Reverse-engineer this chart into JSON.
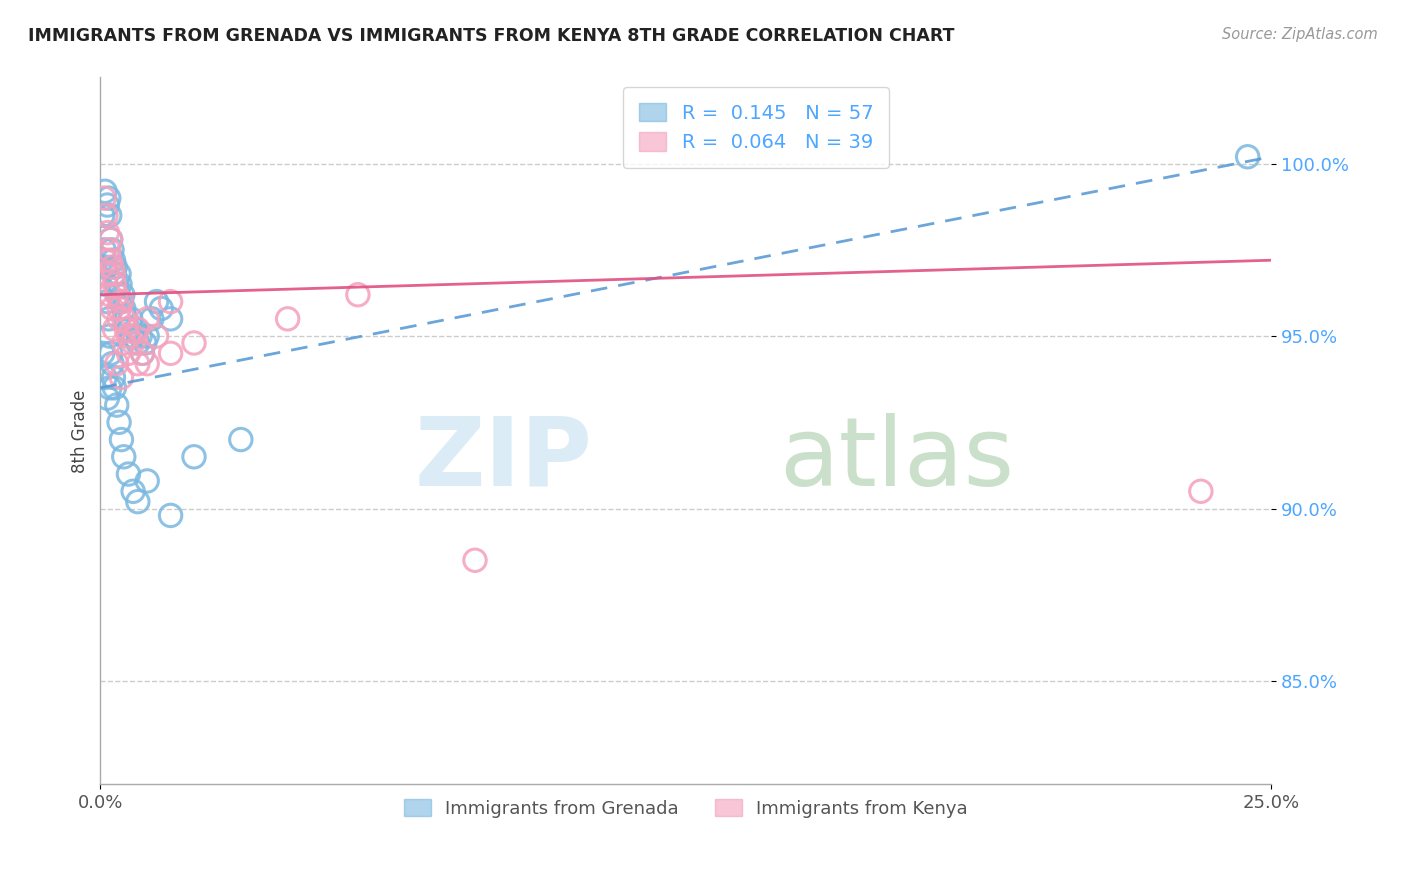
{
  "title": "IMMIGRANTS FROM GRENADA VS IMMIGRANTS FROM KENYA 8TH GRADE CORRELATION CHART",
  "source": "Source: ZipAtlas.com",
  "ylabel": "8th Grade",
  "x_min": 0.0,
  "x_max": 25.0,
  "y_min": 82.0,
  "y_max": 102.5,
  "x_ticks": [
    0.0,
    25.0
  ],
  "x_tick_labels": [
    "0.0%",
    "25.0%"
  ],
  "y_ticks": [
    85.0,
    90.0,
    95.0,
    100.0
  ],
  "y_tick_labels": [
    "85.0%",
    "90.0%",
    "95.0%",
    "100.0%"
  ],
  "grenada_R": 0.145,
  "grenada_N": 57,
  "kenya_R": 0.064,
  "kenya_N": 39,
  "grenada_color": "#7ab8e0",
  "kenya_color": "#f4a0bc",
  "grenada_line_color": "#5b9bd5",
  "kenya_line_color": "#e05080",
  "background_color": "#ffffff",
  "grenada_line_x0": 0.0,
  "grenada_line_y0": 93.5,
  "grenada_line_x1": 25.0,
  "grenada_line_y1": 100.2,
  "kenya_line_x0": 0.0,
  "kenya_line_y0": 96.2,
  "kenya_line_x1": 25.0,
  "kenya_line_y1": 97.2,
  "grenada_x": [
    0.1,
    0.15,
    0.18,
    0.2,
    0.22,
    0.25,
    0.28,
    0.3,
    0.32,
    0.35,
    0.38,
    0.4,
    0.42,
    0.45,
    0.48,
    0.5,
    0.55,
    0.6,
    0.65,
    0.7,
    0.75,
    0.8,
    0.85,
    0.9,
    0.95,
    1.0,
    1.1,
    1.2,
    1.3,
    1.5,
    0.05,
    0.08,
    0.1,
    0.12,
    0.15,
    0.18,
    0.2,
    0.22,
    0.25,
    0.28,
    0.3,
    0.35,
    0.4,
    0.45,
    0.5,
    0.6,
    0.7,
    0.8,
    1.0,
    1.5,
    2.0,
    3.0,
    24.5,
    0.05,
    0.1,
    0.15,
    0.2
  ],
  "grenada_y": [
    99.2,
    98.8,
    99.0,
    98.5,
    97.8,
    97.5,
    97.2,
    96.8,
    97.0,
    96.5,
    96.2,
    96.8,
    96.5,
    96.0,
    96.2,
    95.8,
    95.5,
    95.2,
    95.5,
    95.0,
    95.2,
    94.8,
    95.0,
    94.5,
    94.8,
    95.0,
    95.5,
    96.0,
    95.8,
    95.5,
    98.5,
    97.5,
    97.0,
    96.5,
    96.0,
    95.5,
    95.0,
    94.5,
    94.2,
    93.8,
    93.5,
    93.0,
    92.5,
    92.0,
    91.5,
    91.0,
    90.5,
    90.2,
    90.8,
    89.8,
    91.5,
    92.0,
    100.2,
    94.5,
    93.8,
    93.2,
    93.5
  ],
  "kenya_x": [
    0.08,
    0.12,
    0.15,
    0.18,
    0.2,
    0.22,
    0.25,
    0.28,
    0.3,
    0.35,
    0.4,
    0.45,
    0.5,
    0.55,
    0.6,
    0.7,
    0.8,
    0.9,
    1.0,
    1.2,
    1.5,
    2.0,
    0.1,
    0.15,
    0.2,
    0.25,
    0.3,
    0.4,
    0.5,
    0.6,
    0.8,
    1.0,
    1.5,
    4.0,
    5.5,
    8.0,
    23.5,
    0.35,
    0.45
  ],
  "kenya_y": [
    99.0,
    98.5,
    98.0,
    97.5,
    97.2,
    97.8,
    97.0,
    96.8,
    96.5,
    96.2,
    95.8,
    96.0,
    95.5,
    95.2,
    95.0,
    94.8,
    95.2,
    94.5,
    94.2,
    95.0,
    94.5,
    94.8,
    97.2,
    96.8,
    96.2,
    95.8,
    95.2,
    95.5,
    94.8,
    94.5,
    94.2,
    95.5,
    96.0,
    95.5,
    96.2,
    88.5,
    90.5,
    94.2,
    93.8
  ]
}
